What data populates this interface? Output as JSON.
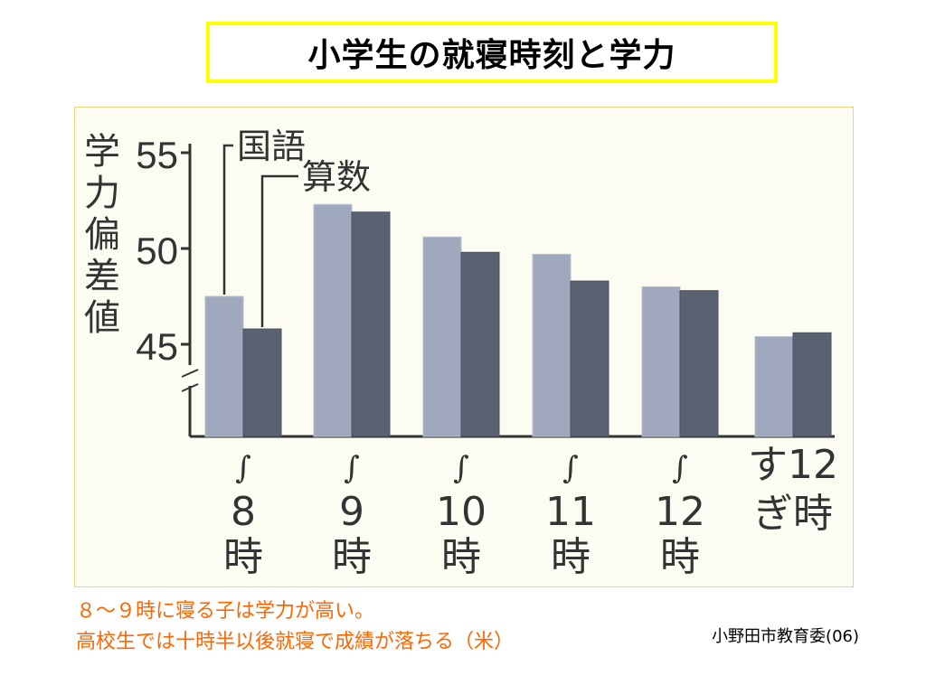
{
  "title": "小学生の就寝時刻と学力",
  "chart_data": {
    "type": "bar",
    "ylabel": "学力偏差値",
    "yticks": [
      55,
      50,
      45
    ],
    "ylim": [
      40,
      56
    ],
    "series": [
      {
        "name": "国語",
        "color": "#9fa8bd",
        "values": [
          47.5,
          52.3,
          50.6,
          49.7,
          48.0,
          45.4
        ]
      },
      {
        "name": "算数",
        "color": "#5a6272",
        "values": [
          45.8,
          51.9,
          49.8,
          48.3,
          47.8,
          45.6
        ]
      }
    ],
    "categories": [
      {
        "tilde": "∫",
        "lines": [
          "8",
          "時"
        ]
      },
      {
        "tilde": "∫",
        "lines": [
          "9",
          "時"
        ]
      },
      {
        "tilde": "∫",
        "lines": [
          "10",
          "時"
        ]
      },
      {
        "tilde": "∫",
        "lines": [
          "11",
          "時"
        ]
      },
      {
        "tilde": "∫",
        "lines": [
          "12",
          "時"
        ]
      },
      {
        "tilde": "",
        "lines": [
          "す12",
          "ぎ時"
        ]
      }
    ]
  },
  "note_lines": [
    "８～９時に寝る子は学力が高い。",
    "高校生では十時半以後就寝で成績が落ちる（米）"
  ],
  "source": "小野田市教育委(06)"
}
